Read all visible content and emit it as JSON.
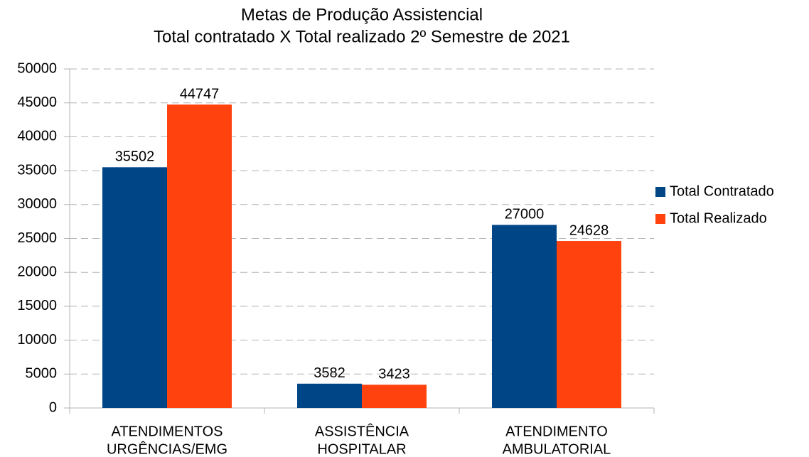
{
  "chart_data": {
    "type": "bar",
    "title": "Metas de Produção Assistencial",
    "subtitle": "Total contratado X Total realizado 2º Semestre de 2021",
    "categories": [
      [
        "ATENDIMENTOS",
        "URGÊNCIAS/EMG"
      ],
      [
        "ASSISTÊNCIA",
        "HOSPITALAR"
      ],
      [
        "ATENDIMENTO",
        "AMBULATORIAL"
      ]
    ],
    "series": [
      {
        "name": "Total Contratado",
        "color": "#004586",
        "values": [
          35502,
          3582,
          27000
        ]
      },
      {
        "name": "Total Realizado",
        "color": "#ff420e",
        "values": [
          44747,
          3423,
          24628
        ]
      }
    ],
    "ylim": [
      0,
      50000
    ],
    "yticks": [
      0,
      5000,
      10000,
      15000,
      20000,
      25000,
      30000,
      35000,
      40000,
      45000,
      50000
    ],
    "grid": true,
    "legend": "right"
  }
}
